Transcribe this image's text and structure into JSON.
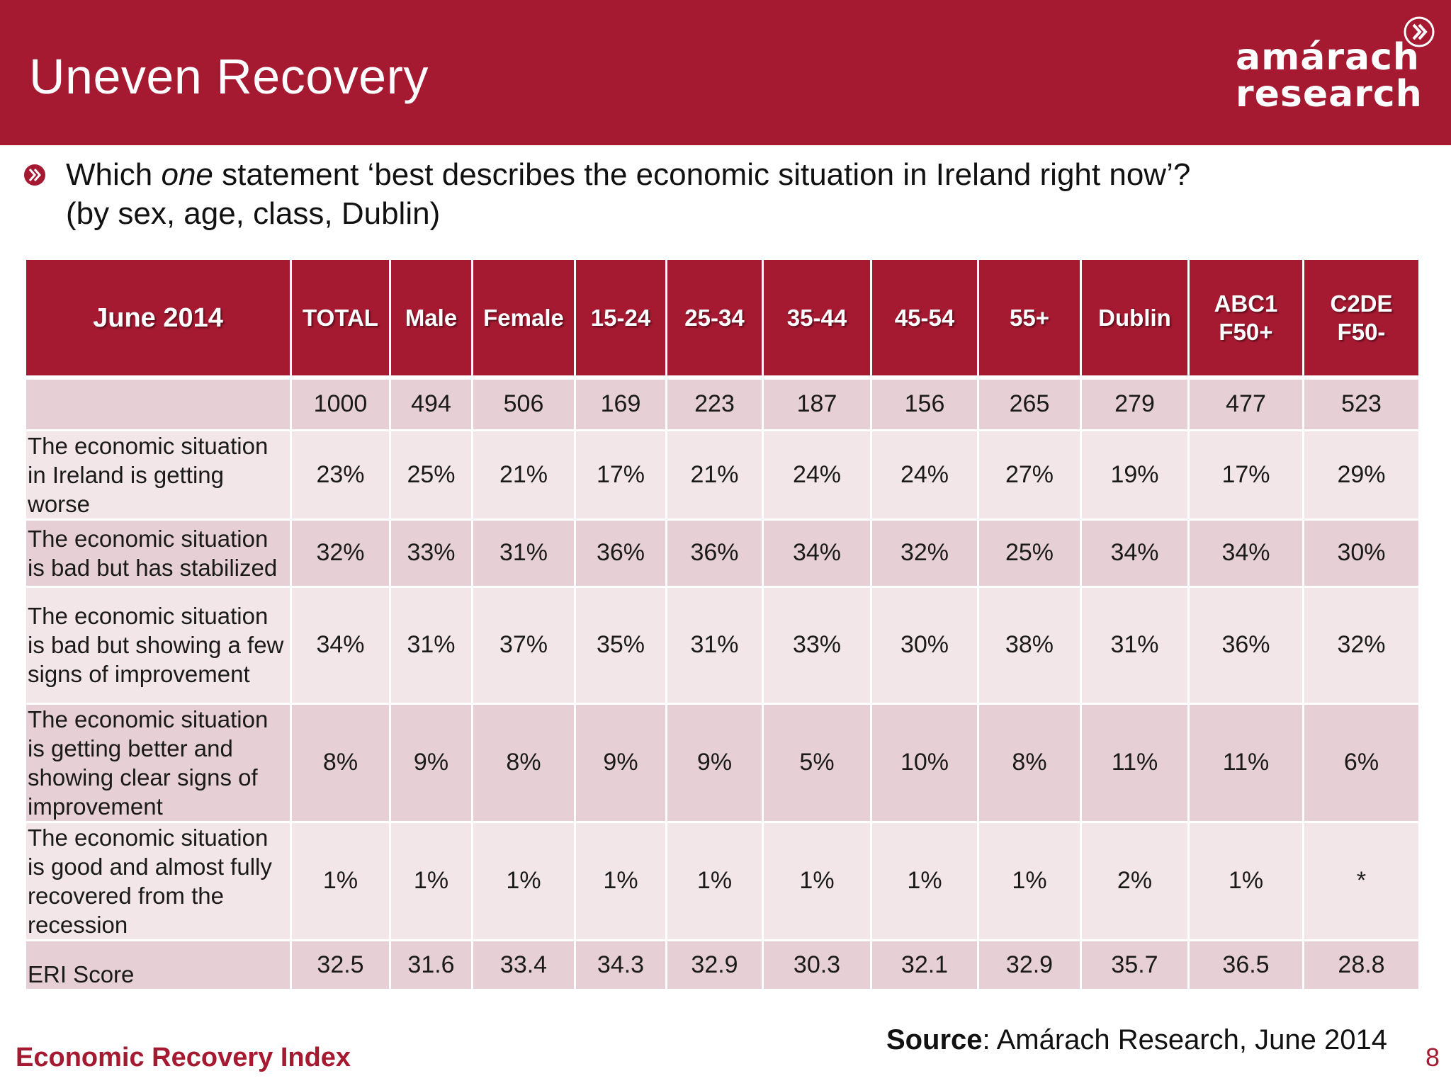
{
  "header": {
    "title": "Uneven Recovery",
    "logo_line1": "amárach",
    "logo_line2": "research",
    "logo_icon": "double-chevron-circle-icon",
    "background_color": "#a51931"
  },
  "question": {
    "bullet_icon": "chevron-bullet-icon",
    "prefix": "Which ",
    "emphasis": "one",
    "suffix": " statement ‘best describes the economic situation in Ireland right now’?",
    "line2": "(by sex, age, class, Dublin)"
  },
  "table": {
    "corner": "June 2014",
    "columns": [
      "TOTAL",
      "Male",
      "Female",
      "15-24",
      "25-34",
      "35-44",
      "45-54",
      "55+",
      "Dublin",
      "ABC1 F50+",
      "C2DE F50-"
    ],
    "base": {
      "label": "",
      "values": [
        "1000",
        "494",
        "506",
        "169",
        "223",
        "187",
        "156",
        "265",
        "279",
        "477",
        "523"
      ]
    },
    "rows": [
      {
        "label": "The economic situation in Ireland is getting worse",
        "values": [
          "23%",
          "25%",
          "21%",
          "17%",
          "21%",
          "24%",
          "24%",
          "27%",
          "19%",
          "17%",
          "29%"
        ]
      },
      {
        "label": "The economic situation is bad but has stabilized",
        "values": [
          "32%",
          "33%",
          "31%",
          "36%",
          "36%",
          "34%",
          "32%",
          "25%",
          "34%",
          "34%",
          "30%"
        ]
      },
      {
        "label": "The economic situation is bad but showing a few signs of improvement",
        "values": [
          "34%",
          "31%",
          "37%",
          "35%",
          "31%",
          "33%",
          "30%",
          "38%",
          "31%",
          "36%",
          "32%"
        ]
      },
      {
        "label": "The economic situation is getting better and showing clear signs of improvement",
        "values": [
          "8%",
          "9%",
          "8%",
          "9%",
          "9%",
          "5%",
          "10%",
          "8%",
          "11%",
          "11%",
          "6%"
        ]
      },
      {
        "label": "The economic situation is good and almost fully recovered from the recession",
        "values": [
          "1%",
          "1%",
          "1%",
          "1%",
          "1%",
          "1%",
          "1%",
          "1%",
          "2%",
          "1%",
          "*"
        ]
      }
    ],
    "eri": {
      "label": "ERI Score",
      "values": [
        "32.5",
        "31.6",
        "33.4",
        "34.3",
        "32.9",
        "30.3",
        "32.1",
        "32.9",
        "35.7",
        "36.5",
        "28.8"
      ]
    }
  },
  "footer": {
    "source_bold": "Source",
    "source_rest": ": Amárach Research, June 2014",
    "left": "Economic Recovery Index",
    "page": "8"
  }
}
